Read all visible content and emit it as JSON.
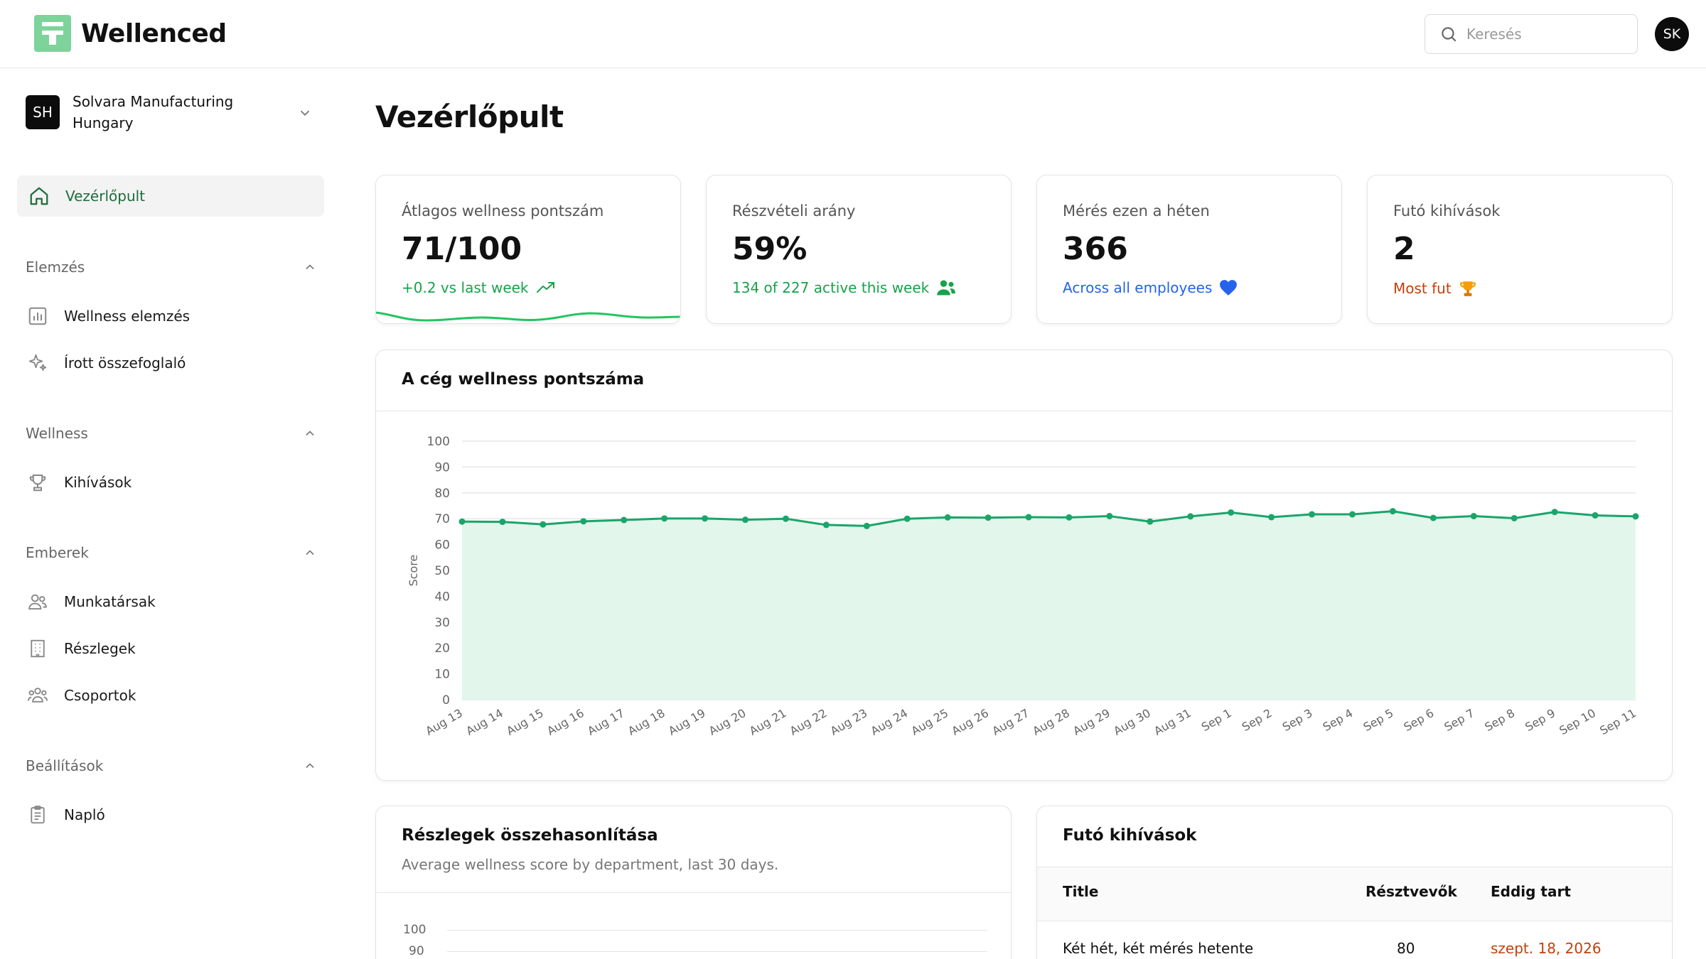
{
  "app": {
    "brand": "Wellenced",
    "search_placeholder": "Keresés",
    "user_initials": "SK"
  },
  "sidebar": {
    "org": {
      "initials": "SH",
      "name": "Solvara Manufacturing Hungary"
    },
    "active": {
      "label": "Vezérlőpult",
      "icon": "home-icon"
    },
    "sections": [
      {
        "title": "Elemzés",
        "items": [
          {
            "label": "Wellness elemzés",
            "icon": "bar-chart-icon"
          },
          {
            "label": "Írott összefoglaló",
            "icon": "sparkles-icon"
          }
        ]
      },
      {
        "title": "Wellness",
        "items": [
          {
            "label": "Kihívások",
            "icon": "trophy-icon"
          }
        ]
      },
      {
        "title": "Emberek",
        "items": [
          {
            "label": "Munkatársak",
            "icon": "users-icon"
          },
          {
            "label": "Részlegek",
            "icon": "building-icon"
          },
          {
            "label": "Csoportok",
            "icon": "group-icon"
          }
        ]
      },
      {
        "title": "Beállítások",
        "items": [
          {
            "label": "Napló",
            "icon": "clipboard-icon"
          }
        ]
      }
    ]
  },
  "main": {
    "title": "Vezérlőpult",
    "stats": [
      {
        "label": "Átlagos wellness pontszám",
        "value": "71/100",
        "sub": "+0.2 vs last week",
        "sub_color": "#16a34a",
        "icon": "trend-up-icon"
      },
      {
        "label": "Részvételi arány",
        "value": "59%",
        "sub": "134 of 227 active this week",
        "sub_color": "#16a34a",
        "icon": "users-fill-icon"
      },
      {
        "label": "Mérés ezen a héten",
        "value": "366",
        "sub": "Across all employees",
        "sub_color": "#2563eb",
        "icon": "heart-icon"
      },
      {
        "label": "Futó kihívások",
        "value": "2",
        "sub": "Most fut",
        "sub_color": "#c2410c",
        "icon": "trophy-fill-icon"
      }
    ],
    "company_chart": {
      "title": "A cég wellness pontszáma"
    },
    "departments": {
      "title": "Részlegek összehasonlítása",
      "subtitle": "Average wellness score by department, last 30 days.",
      "y_ticks": [
        "100",
        "90"
      ]
    },
    "challenges": {
      "title": "Futó kihívások",
      "columns": [
        "Title",
        "Résztvevők",
        "Eddig tart"
      ],
      "rows": [
        {
          "title": "Két hét, két mérés hetente",
          "participants": "80",
          "until": "szept. 18, 2026"
        }
      ]
    }
  },
  "chart_data": {
    "type": "area",
    "title": "A cég wellness pontszáma",
    "ylabel": "Score",
    "xlabel": "",
    "ylim": [
      0,
      100
    ],
    "y_ticks": [
      0,
      10,
      20,
      30,
      40,
      50,
      60,
      70,
      80,
      90,
      100
    ],
    "grid": true,
    "x": [
      "Aug 13",
      "Aug 14",
      "Aug 15",
      "Aug 16",
      "Aug 17",
      "Aug 18",
      "Aug 19",
      "Aug 20",
      "Aug 21",
      "Aug 22",
      "Aug 23",
      "Aug 24",
      "Aug 25",
      "Aug 26",
      "Aug 27",
      "Aug 28",
      "Aug 29",
      "Aug 30",
      "Aug 31",
      "Sep 1",
      "Sep 2",
      "Sep 3",
      "Sep 4",
      "Sep 5",
      "Sep 6",
      "Sep 7",
      "Sep 8",
      "Sep 9",
      "Sep 10",
      "Sep 11"
    ],
    "series": [
      {
        "values": [
          68.9,
          68.8,
          67.8,
          69.0,
          69.5,
          70.1,
          70.1,
          69.6,
          70.0,
          67.6,
          67.2,
          70.0,
          70.5,
          70.4,
          70.6,
          70.5,
          71.0,
          68.9,
          70.9,
          72.4,
          70.6,
          71.7,
          71.7,
          72.9,
          70.3,
          71.0,
          70.2,
          72.6,
          71.3,
          70.9
        ]
      }
    ],
    "color": "#1aa56a",
    "fill": "#e3f6ec"
  }
}
